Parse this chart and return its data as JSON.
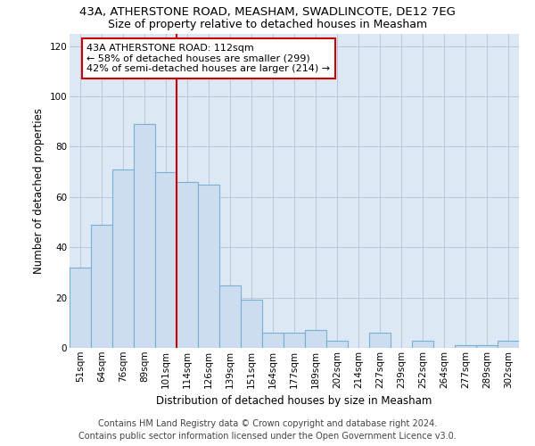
{
  "title": "43A, ATHERSTONE ROAD, MEASHAM, SWADLINCOTE, DE12 7EG",
  "subtitle": "Size of property relative to detached houses in Measham",
  "xlabel": "Distribution of detached houses by size in Measham",
  "ylabel": "Number of detached properties",
  "categories": [
    "51sqm",
    "64sqm",
    "76sqm",
    "89sqm",
    "101sqm",
    "114sqm",
    "126sqm",
    "139sqm",
    "151sqm",
    "164sqm",
    "177sqm",
    "189sqm",
    "202sqm",
    "214sqm",
    "227sqm",
    "239sqm",
    "252sqm",
    "264sqm",
    "277sqm",
    "289sqm",
    "302sqm"
  ],
  "values": [
    32,
    49,
    71,
    89,
    70,
    66,
    65,
    25,
    19,
    6,
    6,
    7,
    3,
    0,
    6,
    0,
    3,
    0,
    1,
    1,
    3
  ],
  "bar_color": "#ccddf0",
  "bar_edge_color": "#7baed4",
  "marker_label": "43A ATHERSTONE ROAD: 112sqm",
  "annotation_line1": "← 58% of detached houses are smaller (299)",
  "annotation_line2": "42% of semi-detached houses are larger (214) →",
  "annotation_box_color": "#ffffff",
  "annotation_box_edge_color": "#cc0000",
  "marker_line_color": "#cc0000",
  "marker_line_index": 5,
  "ylim": [
    0,
    125
  ],
  "yticks": [
    0,
    20,
    40,
    60,
    80,
    100,
    120
  ],
  "grid_color": "#b8c8dc",
  "background_color": "#dce8f4",
  "footer1": "Contains HM Land Registry data © Crown copyright and database right 2024.",
  "footer2": "Contains public sector information licensed under the Open Government Licence v3.0.",
  "title_fontsize": 9.5,
  "subtitle_fontsize": 9,
  "axis_label_fontsize": 8.5,
  "tick_fontsize": 7.5,
  "annotation_fontsize": 8,
  "footer_fontsize": 7
}
